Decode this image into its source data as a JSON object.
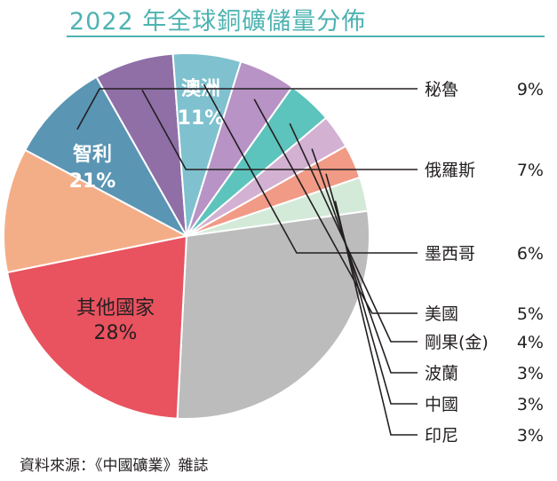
{
  "chart_data": {
    "type": "pie",
    "title": "2022 年全球銅礦儲量分佈",
    "unit": "%",
    "slices": [
      {
        "label": "澳洲",
        "value": 11,
        "display": "11%",
        "color": "#f4ae87"
      },
      {
        "label": "秘魯",
        "value": 9,
        "display": "9%",
        "color": "#5b95b4"
      },
      {
        "label": "俄羅斯",
        "value": 7,
        "display": "7%",
        "color": "#8f6fa6"
      },
      {
        "label": "墨西哥",
        "value": 6,
        "display": "6%",
        "color": "#7fc1cf"
      },
      {
        "label": "美國",
        "value": 5,
        "display": "5%",
        "color": "#b893c6"
      },
      {
        "label": "剛果(金)",
        "value": 4,
        "display": "4%",
        "color": "#5dc3bd"
      },
      {
        "label": "波蘭",
        "value": 3,
        "display": "3%",
        "color": "#d3b1d3"
      },
      {
        "label": "中國",
        "value": 3,
        "display": "3%",
        "color": "#f19a86"
      },
      {
        "label": "印尼",
        "value": 3,
        "display": "3%",
        "color": "#d4ead8"
      },
      {
        "label": "其他國家",
        "value": 28,
        "display": "28%",
        "color": "#bcbcbc"
      },
      {
        "label": "智利",
        "value": 21,
        "display": "21%",
        "color": "#e9525f"
      }
    ],
    "legend_placement": "right"
  },
  "source": "資料來源：《中國礦業》雜誌"
}
